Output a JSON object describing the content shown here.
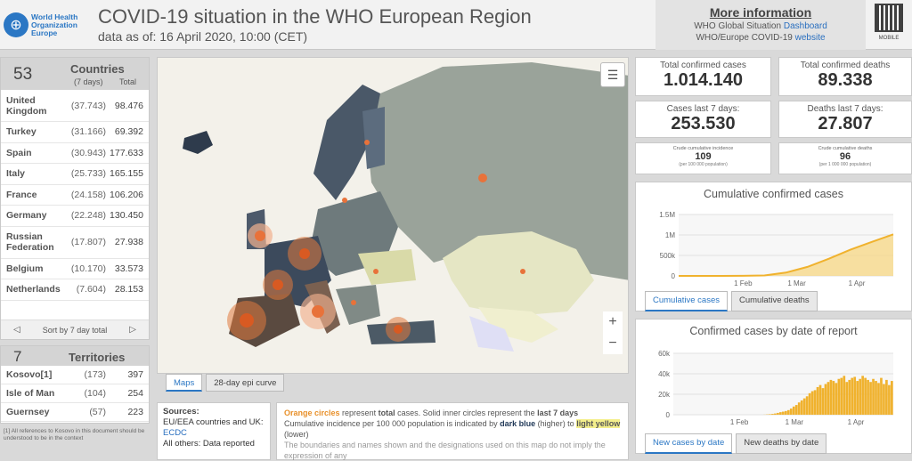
{
  "header": {
    "logo_text": [
      "World Health",
      "Organization",
      "Europe"
    ],
    "title": "COVID-19 situation in the WHO European Region",
    "subtitle": "data as of: 16 April 2020, 10:00 (CET)",
    "more_info_title": "More information",
    "line1_prefix": "WHO Global Situation",
    "line1_link": "Dashboard",
    "line2_prefix": "WHO/Europe COVID-19",
    "line2_link": "website",
    "qr_label": "MOBILE"
  },
  "countries": {
    "count": "53",
    "title": "Countries",
    "col_7days": "(7 days)",
    "col_total": "Total",
    "rows": [
      {
        "name": "United Kingdom",
        "last7": "(37.743)",
        "total": "98.476"
      },
      {
        "name": "Turkey",
        "last7": "(31.166)",
        "total": "69.392"
      },
      {
        "name": "Spain",
        "last7": "(30.943)",
        "total": "177.633"
      },
      {
        "name": "Italy",
        "last7": "(25.733)",
        "total": "165.155"
      },
      {
        "name": "France",
        "last7": "(24.158)",
        "total": "106.206"
      },
      {
        "name": "Germany",
        "last7": "(22.248)",
        "total": "130.450"
      },
      {
        "name": "Russian Federation",
        "last7": "(17.807)",
        "total": "27.938"
      },
      {
        "name": "Belgium",
        "last7": "(10.170)",
        "total": "33.573"
      },
      {
        "name": "Netherlands",
        "last7": "(7.604)",
        "total": "28.153"
      }
    ],
    "sort_label": "Sort by 7 day total"
  },
  "territories": {
    "count": "7",
    "title": "Territories",
    "rows": [
      {
        "name": "Kosovo[1]",
        "last7": "(173)",
        "total": "397"
      },
      {
        "name": "Isle of Man",
        "last7": "(104)",
        "total": "254"
      },
      {
        "name": "Guernsey",
        "last7": "(57)",
        "total": "223"
      }
    ],
    "footnote": "[1] All references to Kosovo in this document should be understood to be in the context"
  },
  "map": {
    "tabs": [
      "Maps",
      "28-day epi curve"
    ],
    "zoom_in": "+",
    "zoom_out": "−"
  },
  "sources": {
    "title": "Sources:",
    "line1": "EU/EEA countries and UK:",
    "link1": "ECDC",
    "line2": "All others: Data reported"
  },
  "legend": {
    "p1_orange": "Orange circles",
    "p1_a": " represent ",
    "p1_b": "total",
    "p1_c": " cases.  Solid inner circles represent the ",
    "p1_d": "last 7 days",
    "p2_a": "Cumulative incidence per 100 000 population is indicated by ",
    "p2_dark": "dark blue",
    "p2_b": " (higher) to ",
    "p2_light": "light yellow",
    "p2_c": " (lower)",
    "p3": "The boundaries and names shown and the designations used on this map do not imply the expression of any"
  },
  "kpis": {
    "total_cases_label": "Total confirmed cases",
    "total_cases": "1.014.140",
    "total_deaths_label": "Total confirmed deaths",
    "total_deaths": "89.338",
    "cases7_label": "Cases last 7 days:",
    "cases7": "253.530",
    "deaths7_label": "Deaths last 7 days:",
    "deaths7": "27.807",
    "incidence_label": "Crude cumulative incidence",
    "incidence": "109",
    "incidence_note": "(per 100 000 population)",
    "death_rate_label": "Crude cumulative deaths",
    "death_rate": "96",
    "death_rate_note": "(per 1 000 000 population)"
  },
  "cumulative_chart": {
    "title": "Cumulative confirmed cases",
    "tabs": [
      "Cumulative cases",
      "Cumulative deaths"
    ]
  },
  "daily_chart": {
    "title": "Confirmed cases by date of report",
    "tabs": [
      "New cases by date",
      "New deaths by date"
    ]
  },
  "chart_data": [
    {
      "type": "area",
      "title": "Cumulative confirmed cases",
      "x_ticks": [
        "1 Feb",
        "1 Mar",
        "1 Apr"
      ],
      "y_ticks": [
        "0",
        "500k",
        "1M",
        "1.5M"
      ],
      "ylim": [
        0,
        1500000
      ],
      "x": [
        "25 Jan",
        "1 Feb",
        "15 Feb",
        "1 Mar",
        "8 Mar",
        "15 Mar",
        "22 Mar",
        "29 Mar",
        "5 Apr",
        "10 Apr",
        "16 Apr"
      ],
      "values": [
        0,
        0,
        50,
        2000,
        10000,
        80000,
        220000,
        420000,
        640000,
        830000,
        1014140
      ],
      "color": "#f0b22e"
    },
    {
      "type": "bar",
      "title": "Confirmed cases by date of report",
      "x_ticks": [
        "1 Feb",
        "1 Mar",
        "1 Apr"
      ],
      "y_ticks": [
        "0",
        "20k",
        "40k",
        "60k"
      ],
      "ylim": [
        0,
        60000
      ],
      "x_start": "25 Jan",
      "values": [
        0,
        0,
        0,
        0,
        0,
        0,
        0,
        0,
        0,
        0,
        0,
        0,
        0,
        0,
        0,
        0,
        0,
        0,
        0,
        0,
        0,
        0,
        0,
        0,
        0,
        0,
        0,
        0,
        0,
        0,
        0,
        0,
        0,
        0,
        100,
        300,
        500,
        800,
        1200,
        1800,
        2500,
        3000,
        3600,
        4500,
        6000,
        8000,
        9500,
        12000,
        14000,
        16000,
        18000,
        21000,
        23000,
        24000,
        27000,
        29000,
        26000,
        30000,
        32000,
        34000,
        33000,
        31000,
        35000,
        36000,
        38000,
        32000,
        34000,
        36000,
        37000,
        33000,
        35000,
        38000,
        36000,
        34000,
        32000,
        35000,
        33000,
        31000,
        36000,
        30000,
        34000,
        29000,
        33000
      ],
      "color": "#f0b22e"
    }
  ]
}
